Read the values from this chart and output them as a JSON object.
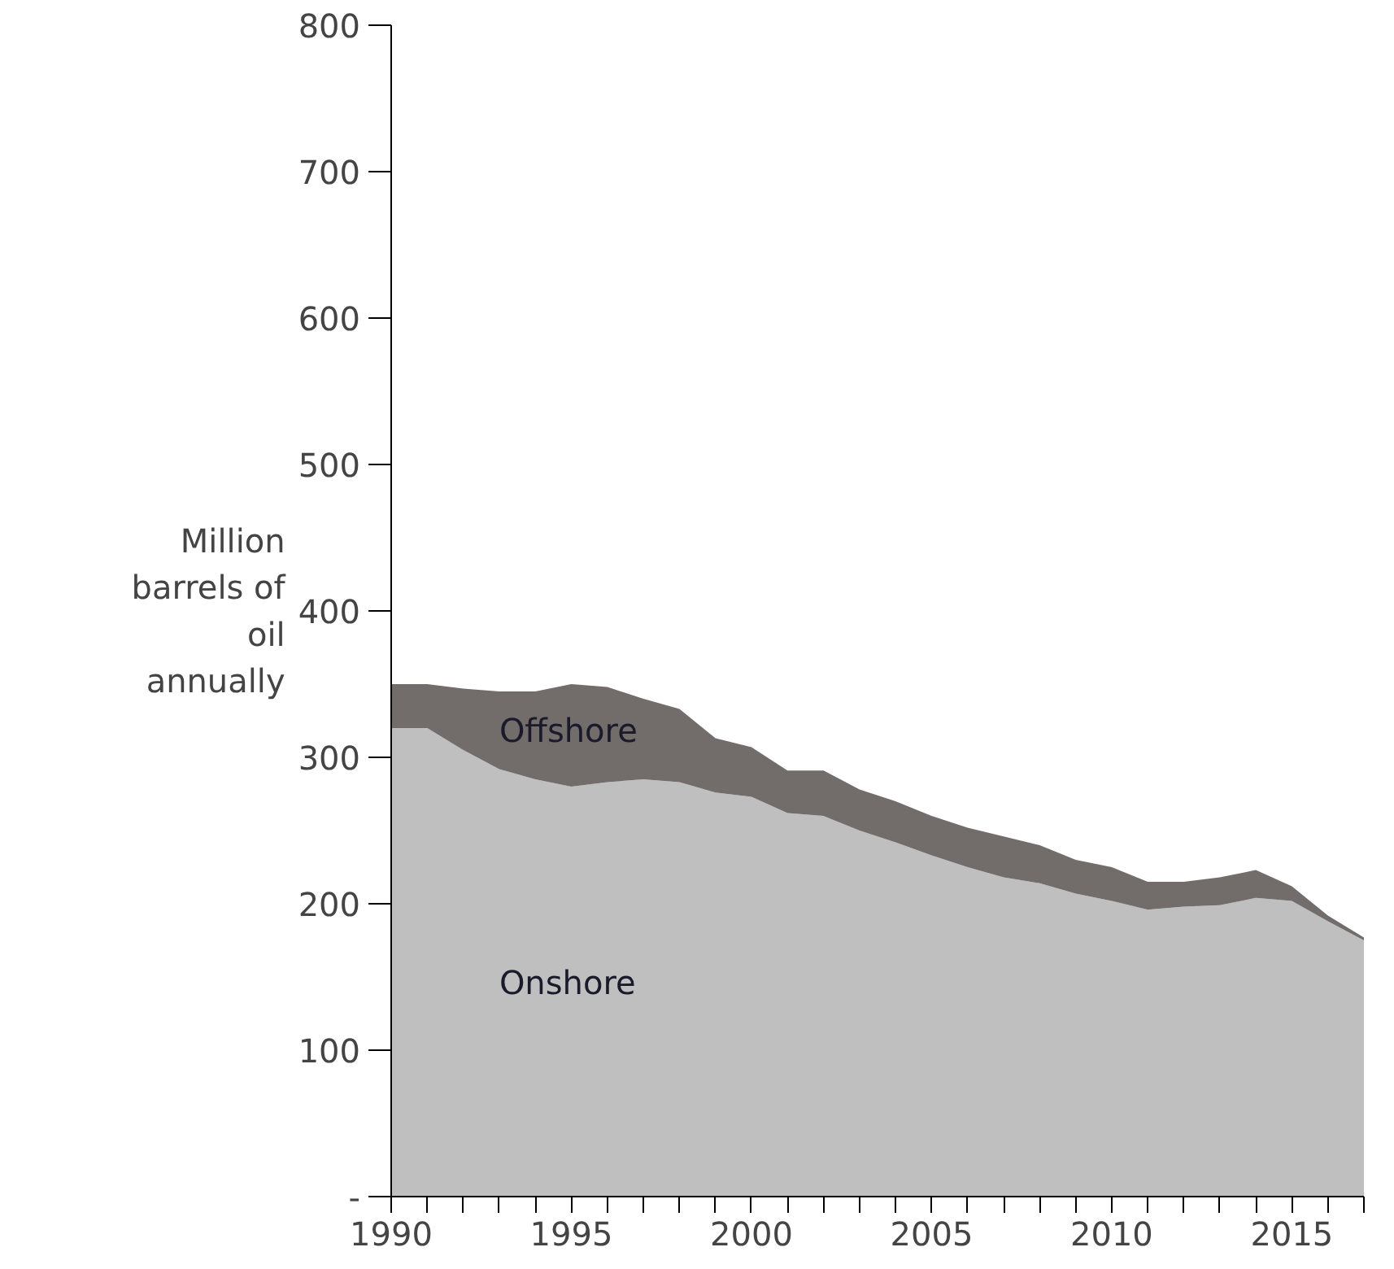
{
  "chart_data": {
    "type": "area",
    "stacked": true,
    "ylabel": "Million\nbarrels of\noil\nannually",
    "x": [
      1990,
      1991,
      1992,
      1993,
      1994,
      1995,
      1996,
      1997,
      1998,
      1999,
      2000,
      2001,
      2002,
      2003,
      2004,
      2005,
      2006,
      2007,
      2008,
      2009,
      2010,
      2011,
      2012,
      2013,
      2014,
      2015,
      2016,
      2017
    ],
    "series": [
      {
        "name": "Onshore",
        "color": "#bfbfbf",
        "values": [
          320,
          320,
          305,
          292,
          285,
          280,
          283,
          285,
          283,
          276,
          273,
          262,
          260,
          250,
          242,
          233,
          225,
          218,
          214,
          207,
          202,
          196,
          198,
          199,
          204,
          202,
          188,
          175
        ]
      },
      {
        "name": "Offshore",
        "color": "#726c6b",
        "values": [
          30,
          30,
          42,
          53,
          60,
          70,
          65,
          55,
          50,
          37,
          34,
          29,
          31,
          28,
          28,
          27,
          27,
          28,
          26,
          23,
          23,
          19,
          17,
          19,
          19,
          10,
          4,
          2
        ]
      }
    ],
    "xlim": [
      1990,
      2017
    ],
    "xticks": [
      1990,
      {
        "value": 1991,
        "label": null
      },
      {
        "value": 1992,
        "label": null
      },
      {
        "value": 1993,
        "label": null
      },
      {
        "value": 1994,
        "label": null
      },
      1995,
      {
        "value": 1996,
        "label": null
      },
      {
        "value": 1997,
        "label": null
      },
      {
        "value": 1998,
        "label": null
      },
      {
        "value": 1999,
        "label": null
      },
      2000,
      {
        "value": 2001,
        "label": null
      },
      {
        "value": 2002,
        "label": null
      },
      {
        "value": 2003,
        "label": null
      },
      {
        "value": 2004,
        "label": null
      },
      2005,
      {
        "value": 2006,
        "label": null
      },
      {
        "value": 2007,
        "label": null
      },
      {
        "value": 2008,
        "label": null
      },
      {
        "value": 2009,
        "label": null
      },
      2010,
      {
        "value": 2011,
        "label": null
      },
      {
        "value": 2012,
        "label": null
      },
      {
        "value": 2013,
        "label": null
      },
      {
        "value": 2014,
        "label": null
      },
      2015,
      {
        "value": 2016,
        "label": null
      },
      {
        "value": 2017,
        "label": null
      }
    ],
    "ylim": [
      0,
      800
    ],
    "yticks": [
      {
        "value": 0,
        "label": "-"
      },
      100,
      200,
      300,
      400,
      500,
      600,
      700,
      800
    ],
    "grid": false
  }
}
